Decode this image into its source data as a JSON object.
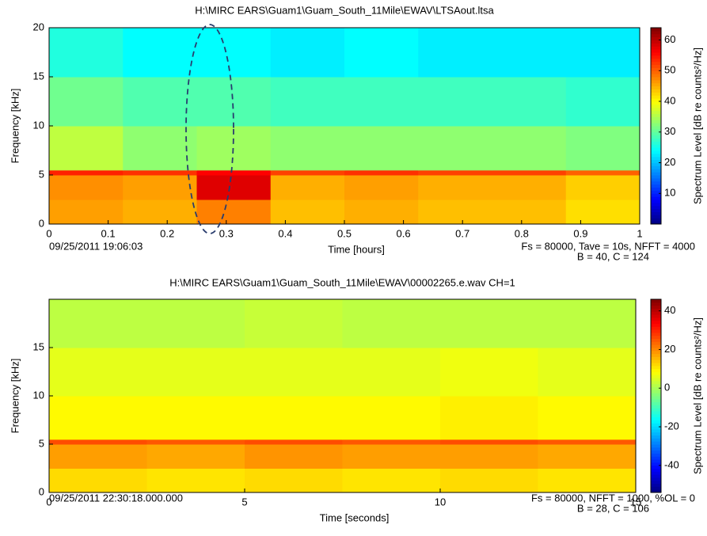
{
  "chart_data": [
    {
      "type": "heatmap",
      "title": "H:\\MIRC EARS\\Guam1\\Guam_South_11Mile\\EWAV\\LTSAout.ltsa",
      "xlabel": "Time [hours]",
      "ylabel": "Frequency [kHz]",
      "colorbar_label": "Spectrum Level [dB re counts²/Hz]",
      "annotations": [
        "09/25/2011 19:06:03",
        "Fs = 80000, Tave = 10s, NFFT = 4000",
        "B = 40, C = 124"
      ],
      "colormap": "jet",
      "x_edges": [
        0,
        0.125,
        0.25,
        0.375,
        0.5,
        0.625,
        0.75,
        0.875,
        1
      ],
      "y_edges": [
        0,
        2.5,
        5,
        5.5,
        10,
        15,
        20
      ],
      "z": [
        [
          46,
          45,
          48,
          44,
          45,
          44,
          44,
          42
        ],
        [
          47,
          46,
          58,
          45,
          46,
          45,
          45,
          43
        ],
        [
          54,
          53,
          56,
          52,
          53,
          52,
          52,
          50
        ],
        [
          36,
          33,
          34,
          33,
          33,
          33,
          33,
          32
        ],
        [
          31,
          29,
          29,
          28,
          28,
          28,
          28,
          27
        ],
        [
          26,
          24,
          24,
          23,
          24,
          23,
          23,
          23
        ]
      ],
      "xlim": [
        0,
        1
      ],
      "ylim": [
        0,
        20
      ],
      "xticks": [
        0,
        0.1,
        0.2,
        0.3,
        0.4,
        0.5,
        0.6,
        0.7,
        0.8,
        0.9,
        1
      ],
      "yticks": [
        0,
        5,
        10,
        15,
        20
      ],
      "clim": [
        0,
        64
      ],
      "cticks": [
        10,
        20,
        30,
        40,
        50,
        60
      ]
    },
    {
      "type": "heatmap",
      "title": "H:\\MIRC EARS\\Guam1\\Guam_South_11Mile\\EWAV\\00002265.e.wav CH=1",
      "xlabel": "Time [seconds]",
      "ylabel": "Frequency [kHz]",
      "colorbar_label": "Spectrum Level [dB re counts²/Hz]",
      "annotations": [
        "09/25/2011 22:30:18.000.000",
        "Fs = 80000, NFFT = 1000, %OL = 0",
        "B = 28, C = 106"
      ],
      "colormap": "jet",
      "x_edges": [
        0,
        2.5,
        5,
        7.5,
        10,
        12.5,
        15
      ],
      "y_edges": [
        0,
        2.5,
        5,
        5.5,
        10,
        15,
        20
      ],
      "z": [
        [
          12,
          11,
          12,
          11,
          12,
          11
        ],
        [
          18,
          17,
          19,
          18,
          18,
          17
        ],
        [
          26,
          25,
          26,
          25,
          26,
          25
        ],
        [
          9,
          9,
          9,
          9,
          10,
          9
        ],
        [
          6,
          6,
          6,
          6,
          7,
          6
        ],
        [
          2,
          2,
          3,
          2,
          2,
          2
        ]
      ],
      "xlim": [
        0,
        15
      ],
      "ylim": [
        0,
        20
      ],
      "xticks": [
        0,
        5,
        10,
        15
      ],
      "yticks": [
        0,
        5,
        10,
        15
      ],
      "clim": [
        -54,
        46
      ],
      "cticks": [
        -40,
        -20,
        0,
        20,
        40
      ]
    }
  ]
}
